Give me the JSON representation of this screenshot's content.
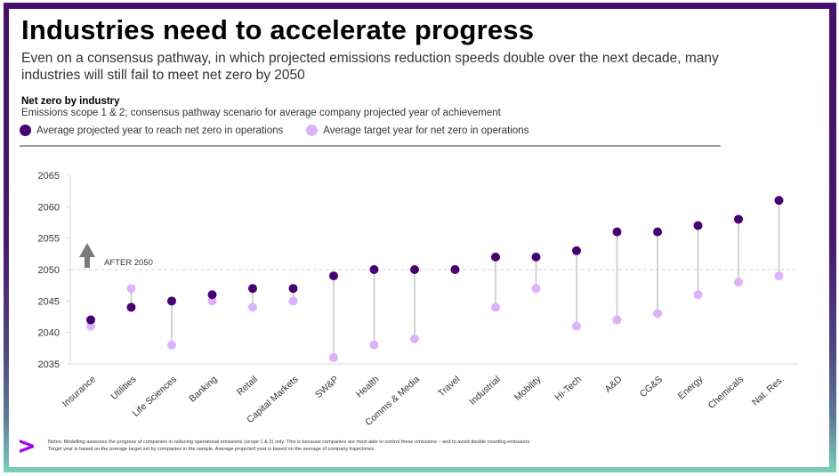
{
  "header": {
    "title": "Industries need to accelerate progress",
    "subtitle": "Even on a consensus pathway, in which projected emissions reduction speeds double over the next decade, many industries will still fail to meet net zero by 2050"
  },
  "legend": {
    "projected": {
      "label": "Average projected year to reach net zero in operations",
      "color": "#460073"
    },
    "target": {
      "label": "Average target year for net zero in operations",
      "color": "#dcb2ff"
    }
  },
  "annotation": {
    "label": "AFTER 2050",
    "icon": "arrow-up-icon",
    "threshold": 2050
  },
  "footer": {
    "logo": "accenture-chevron-icon",
    "logo_color": "#a100ff",
    "notes_line1": "Notes: Modelling assesses the progress of companies in reducing operational emissions (scope 1 & 2) only. This is because companies are most able to control these emissions – and to avoid double counting emissions.",
    "notes_line2": "Target year is based on the average target set by companies in the sample. Average projected year is based on the average of company trajectories."
  },
  "chart_data": {
    "type": "scatter",
    "subtype": "dumbbell",
    "title": "Net zero by industry",
    "subtitle": "Emissions scope 1 & 2; consensus pathway scenario for average company projected year of achievement",
    "xlabel": "",
    "ylabel": "",
    "ylim": [
      2035,
      2065
    ],
    "yticks": [
      2035,
      2040,
      2045,
      2050,
      2055,
      2060,
      2065
    ],
    "reference_line": {
      "y": 2050,
      "style": "dashed"
    },
    "grid": false,
    "legend_position": "top-left",
    "categories": [
      "Insurance",
      "Utilities",
      "Life Sciences",
      "Banking",
      "Retail",
      "Capital Markets",
      "SW&P",
      "Health",
      "Comms & Media",
      "Travel",
      "Industrial",
      "Mobility",
      "Hi-Tech",
      "A&D",
      "CG&S",
      "Energy",
      "Chemicals",
      "Nat. Res."
    ],
    "series": [
      {
        "name": "Average projected year to reach net zero in operations",
        "color": "#460073",
        "values": [
          2042,
          2044,
          2045,
          2046,
          2047,
          2047,
          2049,
          2050,
          2050,
          2050,
          2052,
          2052,
          2053,
          2056,
          2056,
          2057,
          2058,
          2061
        ]
      },
      {
        "name": "Average target year for net zero in operations",
        "color": "#dcb2ff",
        "values": [
          2041,
          2047,
          2038,
          2045,
          2044,
          2045,
          2036,
          2038,
          2039,
          2050,
          2044,
          2047,
          2041,
          2042,
          2043,
          2046,
          2048,
          2049
        ]
      }
    ]
  }
}
